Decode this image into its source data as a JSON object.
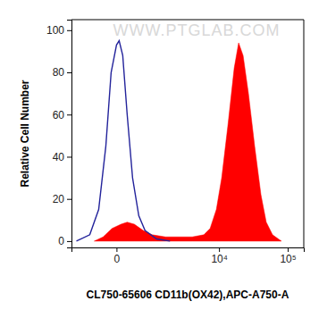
{
  "chart_data": {
    "type": "area",
    "x_label": "CL750-65606 CD11b(OX42),APC-A750-A",
    "y_label": "Relative Cell Number",
    "annotations": [
      "WWW.PTGLAB.COM"
    ],
    "log": "x",
    "xlim": [
      -1200,
      170000
    ],
    "xticks": [
      0,
      {
        "value": 10000,
        "label": "10⁴"
      },
      {
        "value": 100000,
        "label": "10⁵"
      }
    ],
    "ylim": [
      -3,
      105
    ],
    "yticks": [
      0,
      20,
      40,
      60,
      80,
      100
    ],
    "series": [
      {
        "type": "line",
        "color": "#23239b",
        "x": [
          -967,
          -497,
          -281,
          -148,
          -68,
          0,
          32,
          80,
          148,
          245,
          381,
          548,
          967,
          1699
        ],
        "values": [
          0,
          3,
          15,
          45,
          80,
          93,
          95,
          88,
          60,
          30,
          12,
          5,
          1,
          0
        ]
      },
      {
        "type": "area",
        "color": "#ff0000",
        "x": [
          -381,
          -195,
          -56,
          56,
          148,
          281,
          497,
          787,
          1419,
          2402,
          3930,
          5929,
          7365,
          9131,
          10966,
          13556,
          16738,
          19443,
          22598,
          27020,
          33275,
          41000,
          48960,
          60300,
          81060
        ],
        "values": [
          0,
          2,
          6,
          8,
          9,
          8,
          5,
          3,
          2,
          2,
          2,
          3,
          6,
          15,
          30,
          55,
          82,
          94,
          88,
          70,
          45,
          22,
          9,
          3,
          0
        ]
      }
    ]
  }
}
